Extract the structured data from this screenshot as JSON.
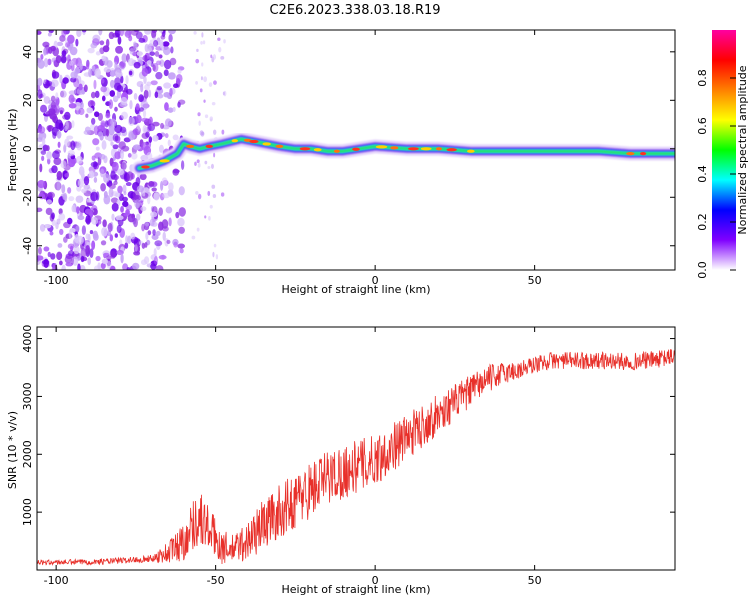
{
  "title": "C2E6.2023.338.03.18.R19",
  "chart_data": [
    {
      "type": "heatmap",
      "xlabel": "Height of straight line (km)",
      "ylabel": "Frequency (Hz)",
      "xlim": [
        -106,
        94
      ],
      "ylim": [
        -50,
        49
      ],
      "xticks": [
        -100,
        -50,
        0,
        50
      ],
      "yticks": [
        -40,
        -20,
        0,
        20,
        40
      ],
      "colorbar": {
        "label": "Normalized spectral amplitude",
        "range": [
          0.0,
          1.0
        ],
        "ticks": [
          "0.0",
          "0.2",
          "0.4",
          "0.6",
          "0.8"
        ],
        "tick_values": [
          0.0,
          0.2,
          0.4,
          0.6,
          0.8
        ],
        "colors": [
          "#ffffff",
          "#8000ff",
          "#0000ff",
          "#00ffff",
          "#00ff00",
          "#ffff00",
          "#ff8000",
          "#ff0000",
          "#ff00a0"
        ]
      },
      "signal_ridge": {
        "x": [
          -74,
          -70,
          -66,
          -62,
          -60,
          -58,
          -55,
          -52,
          -48,
          -45,
          -42,
          -38,
          -34,
          -30,
          -25,
          -20,
          -15,
          -10,
          -5,
          0,
          10,
          20,
          30,
          40,
          50,
          60,
          70,
          80,
          90,
          94
        ],
        "y": [
          -8,
          -7,
          -5,
          -2,
          2,
          1,
          0,
          1,
          2,
          3,
          4,
          3,
          2,
          1,
          0,
          0,
          -1,
          -1,
          0,
          1,
          0,
          0,
          -1,
          -1,
          -1,
          -1,
          -1,
          -2,
          -2,
          -2
        ]
      },
      "grid": false
    },
    {
      "type": "line",
      "xlabel": "Height of straight line (km)",
      "ylabel": "SNR (10 * v/v)",
      "xlim": [
        -106,
        94
      ],
      "ylim": [
        0,
        4200
      ],
      "xticks": [
        -100,
        -50,
        0,
        50
      ],
      "yticks": [
        1000,
        2000,
        3000,
        4000
      ],
      "color": "#e8302a",
      "trend": {
        "x": [
          -106,
          -90,
          -80,
          -70,
          -65,
          -60,
          -57,
          -55,
          -52,
          -48,
          -45,
          -40,
          -35,
          -30,
          -25,
          -20,
          -15,
          -10,
          -5,
          0,
          5,
          10,
          15,
          20,
          25,
          30,
          35,
          40,
          45,
          50,
          55,
          60,
          70,
          80,
          90,
          94
        ],
        "y": [
          130,
          140,
          160,
          200,
          300,
          500,
          800,
          900,
          700,
          400,
          350,
          500,
          800,
          1000,
          1200,
          1400,
          1600,
          1700,
          1800,
          1900,
          2100,
          2300,
          2500,
          2700,
          2900,
          3100,
          3300,
          3400,
          3450,
          3550,
          3620,
          3620,
          3620,
          3600,
          3650,
          3700
        ]
      },
      "noise_amplitude": {
        "x": [
          -106,
          -70,
          -60,
          -55,
          -50,
          -45,
          -35,
          -20,
          0,
          20,
          40,
          50,
          94
        ],
        "y": [
          40,
          60,
          350,
          500,
          350,
          250,
          450,
          500,
          450,
          350,
          200,
          150,
          150
        ]
      },
      "grid": false
    }
  ]
}
